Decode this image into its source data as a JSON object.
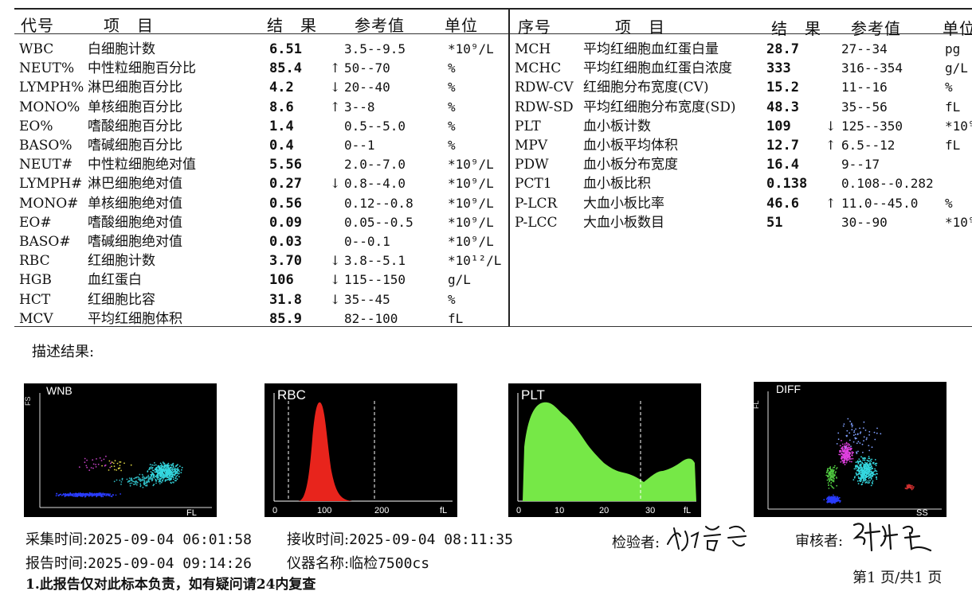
{
  "left_headers": {
    "code": "代号",
    "item": "项　目",
    "result": "结　果",
    "ref": "参考值",
    "unit": "单位"
  },
  "right_headers": {
    "code": "序号",
    "item": "项　目",
    "result": "结　果",
    "ref": "参考值",
    "unit": "单位"
  },
  "left_rows": [
    {
      "code": "WBC",
      "item": "白细胞计数",
      "result": "6.51",
      "flag": "",
      "ref": "3.5--9.5",
      "unit": "*10⁹/L"
    },
    {
      "code": "NEUT%",
      "item": "中性粒细胞百分比",
      "result": "85.4",
      "flag": "↑",
      "ref": "50--70",
      "unit": "%"
    },
    {
      "code": "LYMPH%",
      "item": "淋巴细胞百分比",
      "result": "4.2",
      "flag": "↓",
      "ref": "20--40",
      "unit": "%"
    },
    {
      "code": "MONO%",
      "item": "单核细胞百分比",
      "result": "8.6",
      "flag": "↑",
      "ref": "3--8",
      "unit": "%"
    },
    {
      "code": "EO%",
      "item": "嗜酸细胞百分比",
      "result": "1.4",
      "flag": "",
      "ref": "0.5--5.0",
      "unit": "%"
    },
    {
      "code": "BASO%",
      "item": "嗜碱细胞百分比",
      "result": "0.4",
      "flag": "",
      "ref": "0--1",
      "unit": "%"
    },
    {
      "code": "NEUT#",
      "item": "中性粒细胞绝对值",
      "result": "5.56",
      "flag": "",
      "ref": "2.0--7.0",
      "unit": "*10⁹/L"
    },
    {
      "code": "LYMPH#",
      "item": "淋巴细胞绝对值",
      "result": "0.27",
      "flag": "↓",
      "ref": "0.8--4.0",
      "unit": "*10⁹/L"
    },
    {
      "code": "MONO#",
      "item": "单核细胞绝对值",
      "result": "0.56",
      "flag": "",
      "ref": "0.12--0.8",
      "unit": "*10⁹/L"
    },
    {
      "code": "EO#",
      "item": "嗜酸细胞绝对值",
      "result": "0.09",
      "flag": "",
      "ref": "0.05--0.5",
      "unit": "*10⁹/L"
    },
    {
      "code": "BASO#",
      "item": "嗜碱细胞绝对值",
      "result": "0.03",
      "flag": "",
      "ref": "0--0.1",
      "unit": "*10⁹/L"
    },
    {
      "code": "RBC",
      "item": "红细胞计数",
      "result": "3.70",
      "flag": "↓",
      "ref": "3.8--5.1",
      "unit": "*10¹²/L"
    },
    {
      "code": "HGB",
      "item": "血红蛋白",
      "result": "106",
      "flag": "↓",
      "ref": "115--150",
      "unit": "g/L"
    },
    {
      "code": "HCT",
      "item": "红细胞比容",
      "result": "31.8",
      "flag": "↓",
      "ref": "35--45",
      "unit": "%"
    },
    {
      "code": "MCV",
      "item": "平均红细胞体积",
      "result": "85.9",
      "flag": "",
      "ref": "82--100",
      "unit": "fL"
    }
  ],
  "right_rows": [
    {
      "code": "MCH",
      "item": "平均红细胞血红蛋白量",
      "result": "28.7",
      "flag": "",
      "ref": "27--34",
      "unit": "pg"
    },
    {
      "code": "MCHC",
      "item": "平均红细胞血红蛋白浓度",
      "result": "333",
      "flag": "",
      "ref": "316--354",
      "unit": "g/L"
    },
    {
      "code": "RDW-CV",
      "item": "红细胞分布宽度(CV)",
      "result": "15.2",
      "flag": "",
      "ref": "11--16",
      "unit": "%"
    },
    {
      "code": "RDW-SD",
      "item": "平均红细胞分布宽度(SD)",
      "result": "48.3",
      "flag": "",
      "ref": "35--56",
      "unit": "fL"
    },
    {
      "code": "PLT",
      "item": "血小板计数",
      "result": "109",
      "flag": "↓",
      "ref": "125--350",
      "unit": "*10⁹"
    },
    {
      "code": "MPV",
      "item": "血小板平均体积",
      "result": "12.7",
      "flag": "↑",
      "ref": "6.5--12",
      "unit": "fL"
    },
    {
      "code": "PDW",
      "item": "血小板分布宽度",
      "result": "16.4",
      "flag": "",
      "ref": "9--17",
      "unit": ""
    },
    {
      "code": "PCT1",
      "item": "血小板比积",
      "result": "0.138",
      "flag": "",
      "ref": "0.108--0.282",
      "unit": ""
    },
    {
      "code": "P-LCR",
      "item": "大血小板比率",
      "result": "46.6",
      "flag": "↑",
      "ref": "11.0--45.0",
      "unit": "%"
    },
    {
      "code": "P-LCC",
      "item": "大血小板数目",
      "result": "51",
      "flag": "",
      "ref": "30--90",
      "unit": "*10⁹"
    }
  ],
  "description_label": "描述结果:",
  "panels": {
    "wnb": {
      "title": "WNB",
      "y_axis": "FS",
      "x_axis": "FL"
    },
    "rbc": {
      "title": "RBC",
      "ticks": [
        "0",
        "100",
        "200"
      ],
      "unit": "fL"
    },
    "plt": {
      "title": "PLT",
      "ticks": [
        "0",
        "10",
        "20",
        "30"
      ],
      "unit": "fL"
    },
    "diff": {
      "title": "DIFF",
      "y_axis": "FL",
      "x_axis": "SS"
    }
  },
  "footer": {
    "collect_label": "采集时间:",
    "collect_time": "2025-09-04 06:01:58",
    "receive_label": "接收时间:",
    "receive_time": "2025-09-04 08:11:35",
    "report_label": "报告时间:",
    "report_time": "2025-09-04 09:14:26",
    "instrument_label": "仪器名称:",
    "instrument": "临检7500cs",
    "tester_label": "检验者:",
    "reviewer_label": "审核者:",
    "note": "1.此报告仅对此标本负责，如有疑问请24内复查",
    "page": "第1 页/共1 页"
  }
}
